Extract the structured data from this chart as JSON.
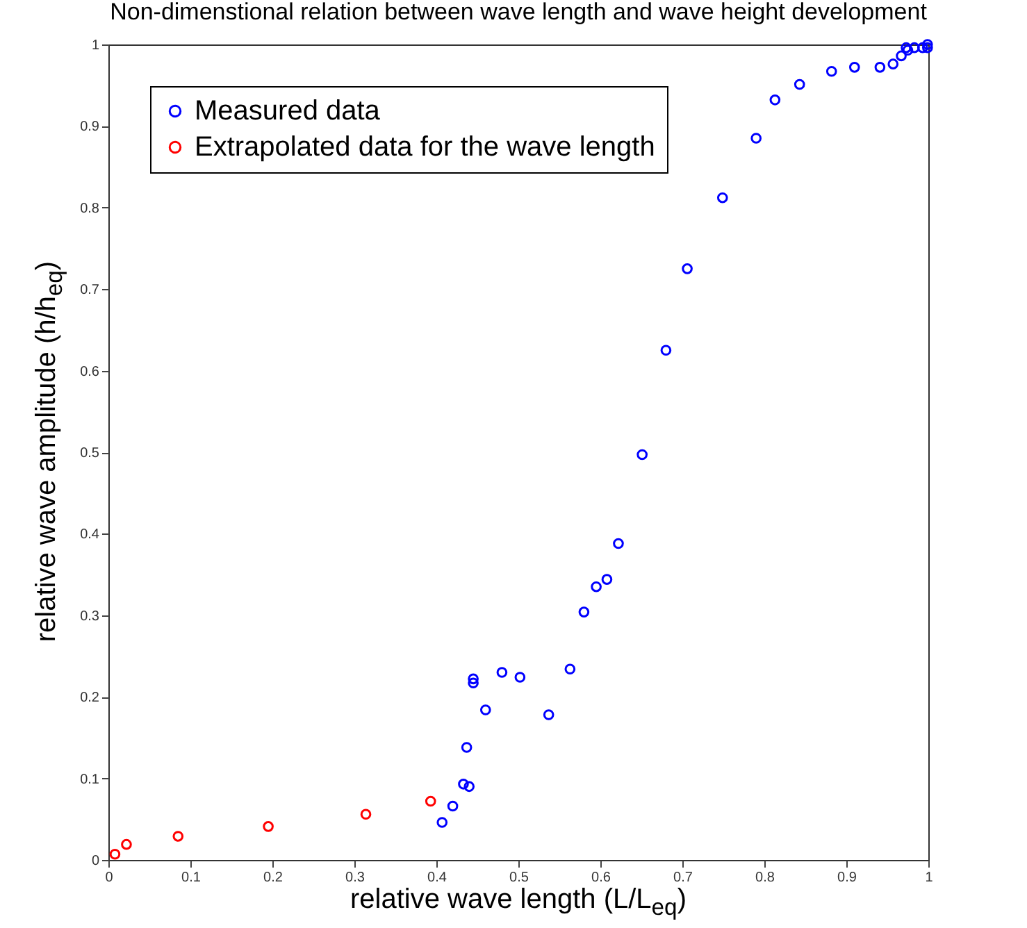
{
  "chart_data": {
    "type": "scatter",
    "title": "Non-dimenstional relation between wave length and wave height development",
    "xlabel": "relative wave length (L/L$_{eq}$)",
    "ylabel": "relative wave amplitude (h/h$_{eq}$)",
    "xlim": [
      0,
      1
    ],
    "ylim": [
      0,
      1
    ],
    "xticks": [
      0,
      0.1,
      0.2,
      0.3,
      0.4,
      0.5,
      0.6,
      0.7,
      0.8,
      0.9,
      1
    ],
    "yticks": [
      0,
      0.1,
      0.2,
      0.3,
      0.4,
      0.5,
      0.6,
      0.7,
      0.8,
      0.9,
      1
    ],
    "grid": false,
    "legend": "top left",
    "marker": "circle",
    "series": [
      {
        "name": "Measured data",
        "color": "#0000ff",
        "x": [
          0.407,
          0.42,
          0.433,
          0.44,
          0.437,
          0.445,
          0.445,
          0.46,
          0.48,
          0.502,
          0.537,
          0.563,
          0.58,
          0.595,
          0.608,
          0.622,
          0.651,
          0.68,
          0.706,
          0.749,
          0.79,
          0.813,
          0.843,
          0.882,
          0.91,
          0.941,
          0.957,
          0.967,
          0.973,
          0.975,
          0.983,
          0.993,
          0.999,
          0.999
        ],
        "values": [
          0.046,
          0.066,
          0.093,
          0.09,
          0.138,
          0.222,
          0.217,
          0.184,
          0.23,
          0.224,
          0.178,
          0.234,
          0.304,
          0.335,
          0.344,
          0.388,
          0.497,
          0.625,
          0.725,
          0.812,
          0.885,
          0.932,
          0.951,
          0.967,
          0.972,
          0.972,
          0.976,
          0.986,
          0.996,
          0.993,
          0.996,
          0.996,
          0.996,
          1.0
        ]
      },
      {
        "name": "Extrapolated data for the wave length",
        "color": "#ff0000",
        "x": [
          0.008,
          0.022,
          0.085,
          0.195,
          0.314,
          0.393
        ],
        "values": [
          0.007,
          0.019,
          0.029,
          0.041,
          0.056,
          0.072
        ]
      }
    ]
  }
}
